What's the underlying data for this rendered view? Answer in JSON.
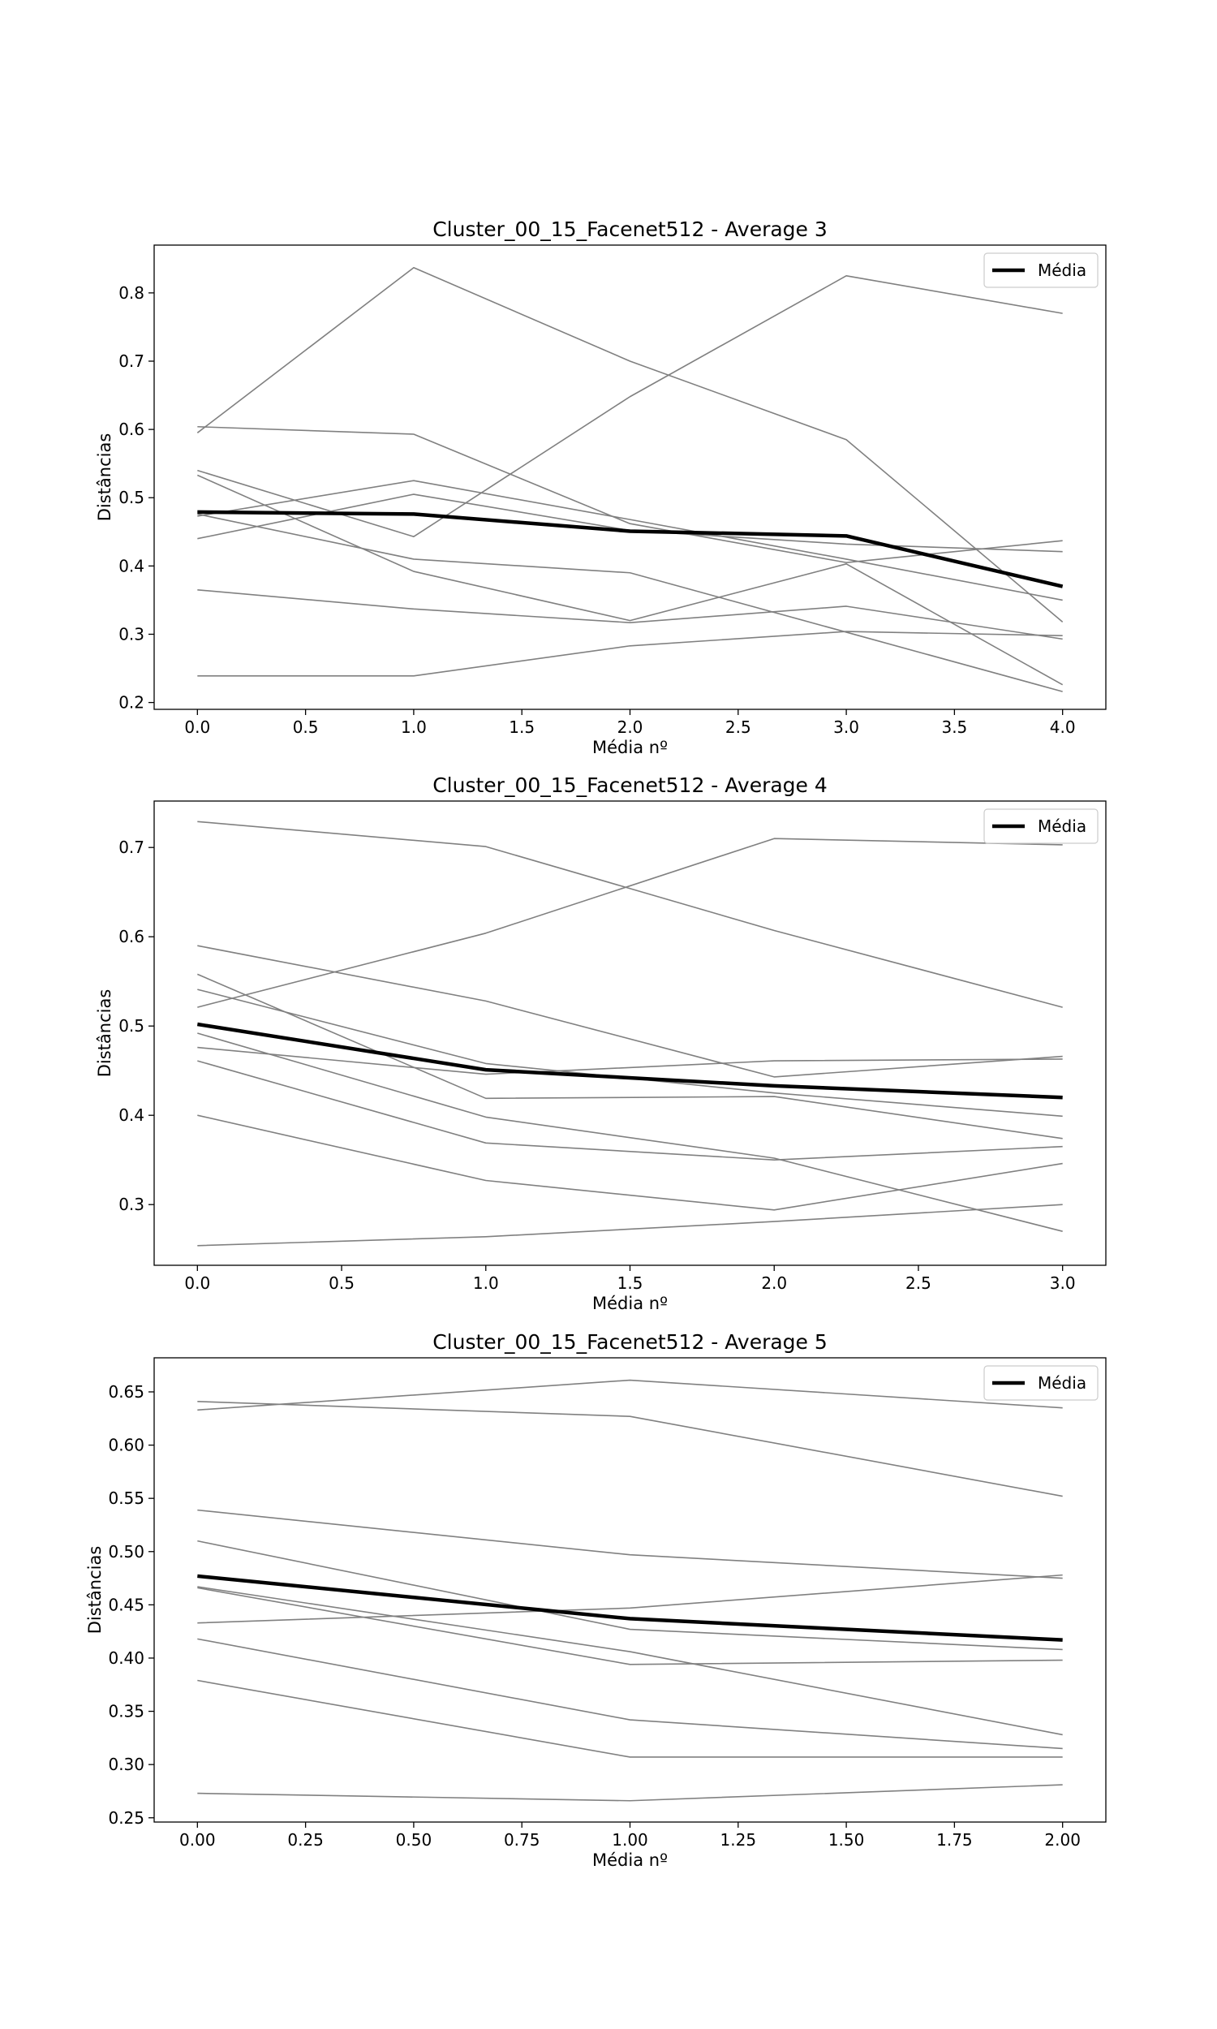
{
  "chart_data": [
    {
      "type": "line",
      "title": "Cluster_00_15_Facenet512 - Average 3",
      "xlabel": "Média nº",
      "ylabel": "Distâncias",
      "xlim": [
        -0.2,
        4.2
      ],
      "ylim": [
        0.19,
        0.87
      ],
      "xticks": [
        0.0,
        0.5,
        1.0,
        1.5,
        2.0,
        2.5,
        3.0,
        3.5,
        4.0
      ],
      "xtick_labels": [
        "0.0",
        "0.5",
        "1.0",
        "1.5",
        "2.0",
        "2.5",
        "3.0",
        "3.5",
        "4.0"
      ],
      "yticks": [
        0.2,
        0.3,
        0.4,
        0.5,
        0.6,
        0.7,
        0.8
      ],
      "ytick_labels": [
        "0.2",
        "0.3",
        "0.4",
        "0.5",
        "0.6",
        "0.7",
        "0.8"
      ],
      "legend": {
        "label": "Média",
        "position": "upper right"
      },
      "grid": false,
      "x": [
        0,
        1,
        2,
        3,
        4
      ],
      "series": [
        {
          "values": [
            0.595,
            0.837,
            0.7,
            0.585,
            0.318
          ]
        },
        {
          "values": [
            0.604,
            0.593,
            0.462,
            0.405,
            0.437
          ]
        },
        {
          "values": [
            0.44,
            0.505,
            0.452,
            0.432,
            0.421
          ]
        },
        {
          "values": [
            0.54,
            0.443,
            0.648,
            0.825,
            0.77
          ]
        },
        {
          "values": [
            0.473,
            0.525,
            0.468,
            0.41,
            0.35
          ]
        },
        {
          "values": [
            0.476,
            0.41,
            0.39,
            0.303,
            0.216
          ]
        },
        {
          "values": [
            0.533,
            0.392,
            0.32,
            0.403,
            0.226
          ]
        },
        {
          "values": [
            0.365,
            0.337,
            0.317,
            0.341,
            0.293
          ]
        },
        {
          "values": [
            0.239,
            0.239,
            0.283,
            0.304,
            0.298
          ]
        },
        {
          "name": "Média",
          "values": [
            0.479,
            0.476,
            0.451,
            0.444,
            0.37
          ],
          "highlight": true
        }
      ]
    },
    {
      "type": "line",
      "title": "Cluster_00_15_Facenet512 - Average 4",
      "xlabel": "Média nº",
      "ylabel": "Distâncias",
      "xlim": [
        -0.15,
        3.15
      ],
      "ylim": [
        0.232,
        0.752
      ],
      "xticks": [
        0.0,
        0.5,
        1.0,
        1.5,
        2.0,
        2.5,
        3.0
      ],
      "xtick_labels": [
        "0.0",
        "0.5",
        "1.0",
        "1.5",
        "2.0",
        "2.5",
        "3.0"
      ],
      "yticks": [
        0.3,
        0.4,
        0.5,
        0.6,
        0.7
      ],
      "ytick_labels": [
        "0.3",
        "0.4",
        "0.5",
        "0.6",
        "0.7"
      ],
      "legend": {
        "label": "Média",
        "position": "upper right"
      },
      "grid": false,
      "x": [
        0,
        1,
        2,
        3
      ],
      "series": [
        {
          "values": [
            0.729,
            0.701,
            0.607,
            0.521
          ]
        },
        {
          "values": [
            0.521,
            0.604,
            0.71,
            0.703
          ]
        },
        {
          "values": [
            0.59,
            0.528,
            0.443,
            0.466
          ]
        },
        {
          "values": [
            0.541,
            0.458,
            0.425,
            0.399
          ]
        },
        {
          "values": [
            0.476,
            0.446,
            0.461,
            0.463
          ]
        },
        {
          "values": [
            0.558,
            0.419,
            0.421,
            0.374
          ]
        },
        {
          "values": [
            0.492,
            0.398,
            0.352,
            0.27
          ]
        },
        {
          "values": [
            0.461,
            0.369,
            0.35,
            0.365
          ]
        },
        {
          "values": [
            0.4,
            0.327,
            0.294,
            0.346
          ]
        },
        {
          "values": [
            0.254,
            0.264,
            0.281,
            0.3
          ]
        },
        {
          "name": "Média",
          "values": [
            0.502,
            0.451,
            0.433,
            0.42
          ],
          "highlight": true
        }
      ]
    },
    {
      "type": "line",
      "title": "Cluster_00_15_Facenet512 - Average 5",
      "xlabel": "Média nº",
      "ylabel": "Distâncias",
      "xlim": [
        -0.1,
        2.1
      ],
      "ylim": [
        0.246,
        0.682
      ],
      "xticks": [
        0.0,
        0.25,
        0.5,
        0.75,
        1.0,
        1.25,
        1.5,
        1.75,
        2.0
      ],
      "xtick_labels": [
        "0.00",
        "0.25",
        "0.50",
        "0.75",
        "1.00",
        "1.25",
        "1.50",
        "1.75",
        "2.00"
      ],
      "yticks": [
        0.25,
        0.3,
        0.35,
        0.4,
        0.45,
        0.5,
        0.55,
        0.6,
        0.65
      ],
      "ytick_labels": [
        "0.25",
        "0.30",
        "0.35",
        "0.40",
        "0.45",
        "0.50",
        "0.55",
        "0.60",
        "0.65"
      ],
      "legend": {
        "label": "Média",
        "position": "upper right"
      },
      "grid": false,
      "x": [
        0,
        1,
        2
      ],
      "series": [
        {
          "values": [
            0.633,
            0.661,
            0.635
          ]
        },
        {
          "values": [
            0.641,
            0.627,
            0.552
          ]
        },
        {
          "values": [
            0.539,
            0.497,
            0.475
          ]
        },
        {
          "values": [
            0.51,
            0.427,
            0.408
          ]
        },
        {
          "values": [
            0.433,
            0.447,
            0.478
          ]
        },
        {
          "values": [
            0.466,
            0.394,
            0.398
          ]
        },
        {
          "values": [
            0.467,
            0.406,
            0.328
          ]
        },
        {
          "values": [
            0.418,
            0.342,
            0.315
          ]
        },
        {
          "values": [
            0.379,
            0.307,
            0.307
          ]
        },
        {
          "values": [
            0.273,
            0.266,
            0.281
          ]
        },
        {
          "name": "Média",
          "values": [
            0.477,
            0.437,
            0.417
          ],
          "highlight": true
        }
      ]
    }
  ]
}
